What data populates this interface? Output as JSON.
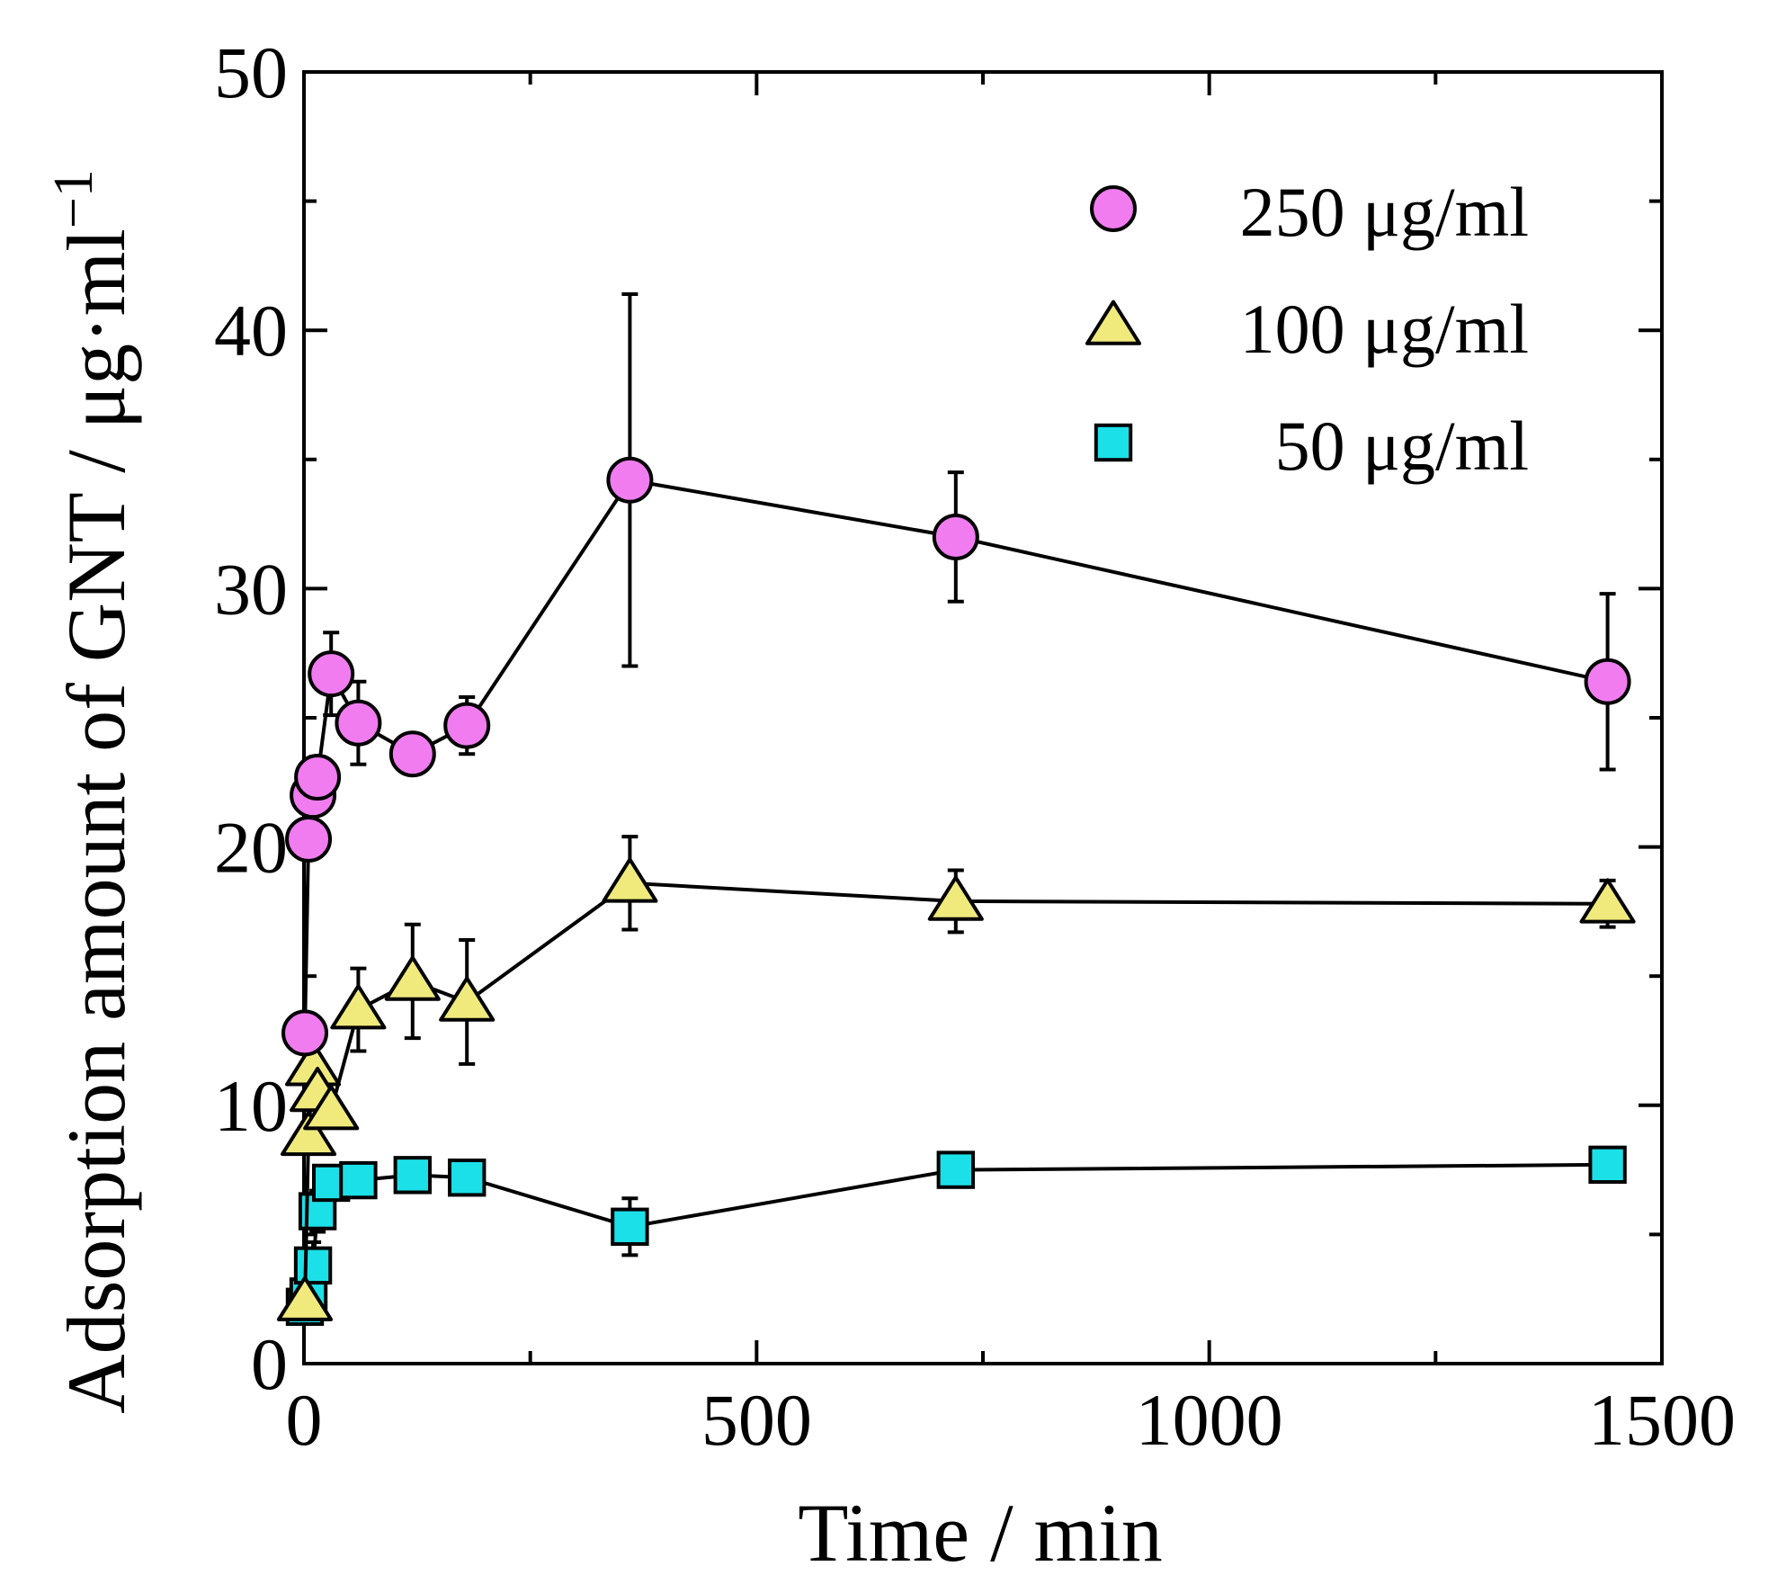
{
  "chart_data": {
    "type": "scatter",
    "xlabel": "Time / min",
    "ylabel_main": "Adsorption amount of GNT / μg·ml",
    "ylabel_sup": "−1",
    "xlim": [
      0,
      1500
    ],
    "ylim": [
      0,
      50
    ],
    "xticks": [
      0,
      500,
      1000,
      1500
    ],
    "xtick_labels": [
      "0",
      "500",
      "1000",
      "1500"
    ],
    "yticks": [
      0,
      10,
      20,
      30,
      40,
      50
    ],
    "ytick_labels": [
      "0",
      "10",
      "20",
      "30",
      "40",
      "50"
    ],
    "x_minor_ticks": [
      250,
      750,
      1250
    ],
    "y_minor_ticks": [
      5,
      15,
      25,
      35,
      45
    ],
    "grid": false,
    "legend_position": "top-right",
    "series": [
      {
        "name": "250 μg/ml",
        "marker": "circle",
        "color": "#f07cf0",
        "x": [
          1,
          5,
          10,
          15,
          30,
          60,
          120,
          180,
          360,
          720,
          1440
        ],
        "y": [
          12.8,
          20.3,
          22.0,
          22.7,
          26.7,
          24.8,
          23.6,
          24.7,
          34.2,
          32.0,
          26.4
        ],
        "err": [
          0.4,
          0.6,
          0.6,
          0.8,
          1.6,
          1.6,
          0.3,
          1.1,
          7.2,
          2.5,
          3.4
        ]
      },
      {
        "name": "100 μg/ml",
        "marker": "triangle",
        "color": "#f0ea7c",
        "x": [
          1,
          5,
          10,
          15,
          30,
          60,
          120,
          180,
          360,
          720,
          1440
        ],
        "y": [
          2.4,
          8.8,
          11.5,
          10.5,
          9.8,
          13.7,
          14.8,
          14.0,
          18.6,
          17.9,
          17.8
        ],
        "err": [
          0.2,
          0.5,
          1.5,
          1.1,
          0.5,
          1.6,
          2.2,
          2.4,
          1.8,
          1.2,
          0.9
        ]
      },
      {
        "name": "50 μg/ml",
        "marker": "square",
        "color": "#1ce0e8",
        "x": [
          1,
          5,
          10,
          15,
          30,
          60,
          120,
          180,
          360,
          720,
          1440
        ],
        "y": [
          2.2,
          2.6,
          3.8,
          5.9,
          7.0,
          7.1,
          7.3,
          7.2,
          5.3,
          7.5,
          7.7
        ],
        "err": [
          0.2,
          0.2,
          0.9,
          0.8,
          0.4,
          0.3,
          0.4,
          0.3,
          1.1,
          0.4,
          0.4
        ]
      }
    ]
  }
}
